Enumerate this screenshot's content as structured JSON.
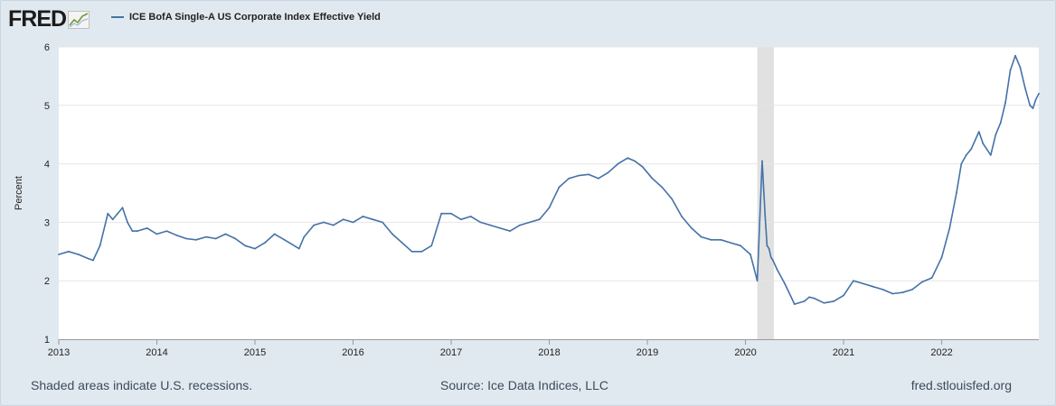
{
  "header": {
    "logo_text": "FRED",
    "logo_icon": "chart-trend-icon"
  },
  "footer": {
    "recessions_note": "Shaded areas indicate U.S. recessions.",
    "source": "Source: Ice Data Indices, LLC",
    "site": "fred.stlouisfed.org"
  },
  "colors": {
    "series": "#4572a7",
    "recession": "#e1e1e1",
    "grid": "#e6e6e6",
    "background": "#e1e9f0",
    "plot": "#ffffff"
  },
  "chart_data": {
    "type": "line",
    "title": "",
    "xlabel": "",
    "ylabel": "Percent",
    "xlim": [
      2013.0,
      2022.99
    ],
    "ylim": [
      1,
      6
    ],
    "x_ticks": [
      2013,
      2014,
      2015,
      2016,
      2017,
      2018,
      2019,
      2020,
      2021,
      2022
    ],
    "x_tick_labels": [
      "2013",
      "2014",
      "2015",
      "2016",
      "2017",
      "2018",
      "2019",
      "2020",
      "2021",
      "2022"
    ],
    "y_ticks": [
      1,
      2,
      3,
      4,
      5,
      6
    ],
    "y_tick_labels": [
      "1",
      "2",
      "3",
      "4",
      "5",
      "6"
    ],
    "grid": true,
    "legend": "top-left",
    "recessions": [
      {
        "start": 2020.12,
        "end": 2020.29
      }
    ],
    "series": [
      {
        "name": "ICE BofA Single-A US Corporate Index Effective Yield",
        "x": [
          2013.0,
          2013.1,
          2013.2,
          2013.3,
          2013.35,
          2013.42,
          2013.5,
          2013.55,
          2013.6,
          2013.65,
          2013.7,
          2013.75,
          2013.8,
          2013.9,
          2014.0,
          2014.1,
          2014.2,
          2014.3,
          2014.4,
          2014.5,
          2014.6,
          2014.7,
          2014.8,
          2014.9,
          2015.0,
          2015.1,
          2015.2,
          2015.3,
          2015.45,
          2015.5,
          2015.6,
          2015.7,
          2015.8,
          2015.9,
          2016.0,
          2016.1,
          2016.2,
          2016.3,
          2016.4,
          2016.5,
          2016.6,
          2016.7,
          2016.8,
          2016.9,
          2017.0,
          2017.1,
          2017.2,
          2017.3,
          2017.4,
          2017.5,
          2017.6,
          2017.7,
          2017.8,
          2017.9,
          2018.0,
          2018.1,
          2018.2,
          2018.3,
          2018.4,
          2018.5,
          2018.6,
          2018.7,
          2018.8,
          2018.87,
          2018.95,
          2019.05,
          2019.15,
          2019.25,
          2019.35,
          2019.45,
          2019.55,
          2019.65,
          2019.75,
          2019.85,
          2019.95,
          2020.05,
          2020.12,
          2020.17,
          2020.2,
          2020.22,
          2020.24,
          2020.26,
          2020.28,
          2020.32,
          2020.4,
          2020.5,
          2020.6,
          2020.65,
          2020.7,
          2020.8,
          2020.9,
          2021.0,
          2021.1,
          2021.2,
          2021.3,
          2021.4,
          2021.5,
          2021.6,
          2021.7,
          2021.8,
          2021.9,
          2022.0,
          2022.08,
          2022.15,
          2022.2,
          2022.25,
          2022.3,
          2022.38,
          2022.42,
          2022.5,
          2022.55,
          2022.6,
          2022.65,
          2022.7,
          2022.75,
          2022.8,
          2022.85,
          2022.9,
          2022.93,
          2022.96,
          2022.99
        ],
        "values": [
          2.45,
          2.5,
          2.45,
          2.38,
          2.35,
          2.6,
          3.15,
          3.05,
          3.15,
          3.25,
          3.0,
          2.85,
          2.85,
          2.9,
          2.8,
          2.85,
          2.78,
          2.72,
          2.7,
          2.75,
          2.72,
          2.8,
          2.72,
          2.6,
          2.55,
          2.65,
          2.8,
          2.7,
          2.55,
          2.75,
          2.95,
          3.0,
          2.95,
          3.05,
          3.0,
          3.1,
          3.05,
          3.0,
          2.8,
          2.65,
          2.5,
          2.5,
          2.6,
          3.15,
          3.15,
          3.05,
          3.1,
          3.0,
          2.95,
          2.9,
          2.85,
          2.95,
          3.0,
          3.05,
          3.25,
          3.6,
          3.75,
          3.8,
          3.82,
          3.75,
          3.85,
          4.0,
          4.1,
          4.05,
          3.95,
          3.75,
          3.6,
          3.4,
          3.1,
          2.9,
          2.75,
          2.7,
          2.7,
          2.65,
          2.6,
          2.45,
          2.0,
          4.05,
          3.1,
          2.6,
          2.55,
          2.4,
          2.35,
          2.2,
          1.95,
          1.6,
          1.65,
          1.72,
          1.7,
          1.62,
          1.65,
          1.75,
          2.0,
          1.95,
          1.9,
          1.85,
          1.78,
          1.8,
          1.85,
          1.98,
          2.05,
          2.4,
          2.9,
          3.5,
          4.0,
          4.15,
          4.25,
          4.55,
          4.35,
          4.15,
          4.5,
          4.7,
          5.05,
          5.6,
          5.85,
          5.65,
          5.3,
          5.0,
          4.95,
          5.1,
          5.2
        ]
      }
    ]
  }
}
